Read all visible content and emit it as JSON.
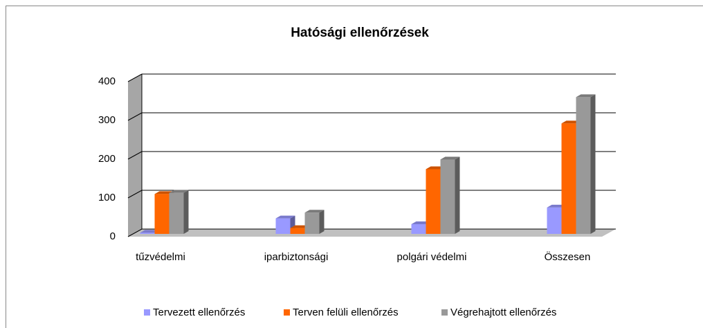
{
  "chart_data": {
    "type": "bar3d",
    "title": "Hatósági ellenőrzések",
    "categories": [
      "tűzvédelmi",
      "iparbiztonsági",
      "polgári védelmi",
      "Összesen"
    ],
    "series": [
      {
        "name": "Tervezett ellenőrzés",
        "color": "#9999ff",
        "values": [
          3,
          40,
          25,
          68
        ]
      },
      {
        "name": "Terven felüli ellenőrzés",
        "color": "#ff6600",
        "values": [
          103,
          15,
          167,
          285
        ]
      },
      {
        "name": "Végrehajtott ellenőrzés",
        "color": "#999999",
        "values": [
          106,
          55,
          192,
          353
        ]
      }
    ],
    "ylim": [
      0,
      400
    ],
    "yticks": [
      0,
      100,
      200,
      300,
      400
    ],
    "grid": true,
    "legend": "bottom"
  }
}
